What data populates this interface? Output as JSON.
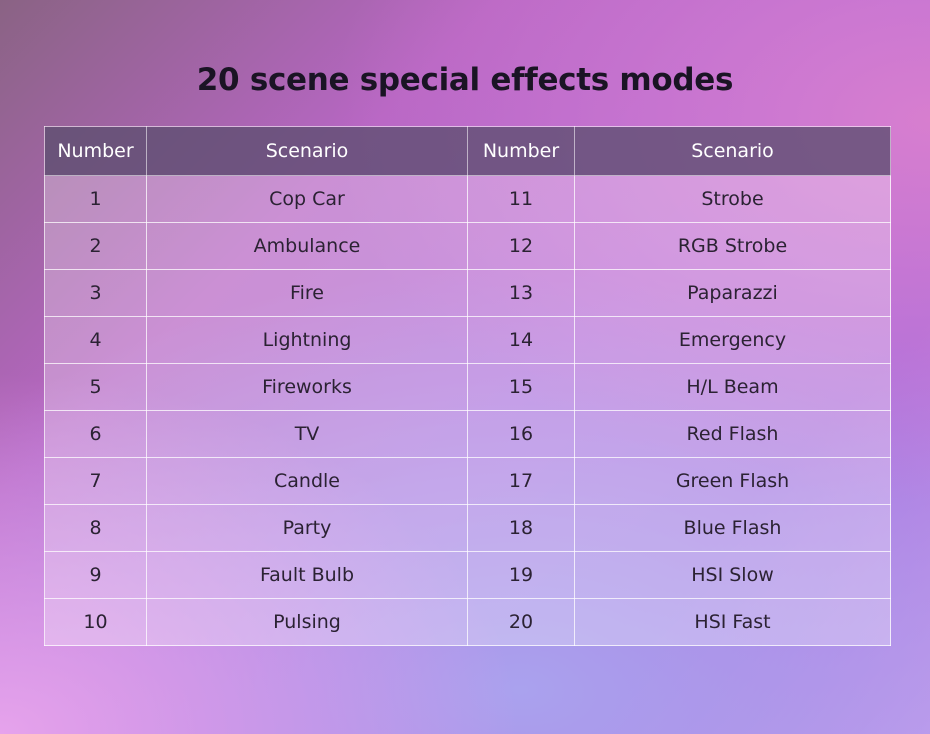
{
  "title": "20 scene special effects modes",
  "table": {
    "headers": [
      "Number",
      "Scenario",
      "Number",
      "Scenario"
    ],
    "rows": [
      {
        "left_num": "1",
        "left_scene": "Cop Car",
        "right_num": "11",
        "right_scene": "Strobe"
      },
      {
        "left_num": "2",
        "left_scene": "Ambulance",
        "right_num": "12",
        "right_scene": "RGB Strobe"
      },
      {
        "left_num": "3",
        "left_scene": "Fire",
        "right_num": "13",
        "right_scene": "Paparazzi"
      },
      {
        "left_num": "4",
        "left_scene": "Lightning",
        "right_num": "14",
        "right_scene": "Emergency"
      },
      {
        "left_num": "5",
        "left_scene": "Fireworks",
        "right_num": "15",
        "right_scene": "H/L Beam"
      },
      {
        "left_num": "6",
        "left_scene": "TV",
        "right_num": "16",
        "right_scene": "Red Flash"
      },
      {
        "left_num": "7",
        "left_scene": "Candle",
        "right_num": "17",
        "right_scene": "Green Flash"
      },
      {
        "left_num": "8",
        "left_scene": "Party",
        "right_num": "18",
        "right_scene": "Blue Flash"
      },
      {
        "left_num": "9",
        "left_scene": "Fault Bulb",
        "right_num": "19",
        "right_scene": "HSI Slow"
      },
      {
        "left_num": "10",
        "left_scene": "Pulsing",
        "right_num": "20",
        "right_scene": "HSI Fast"
      }
    ]
  }
}
